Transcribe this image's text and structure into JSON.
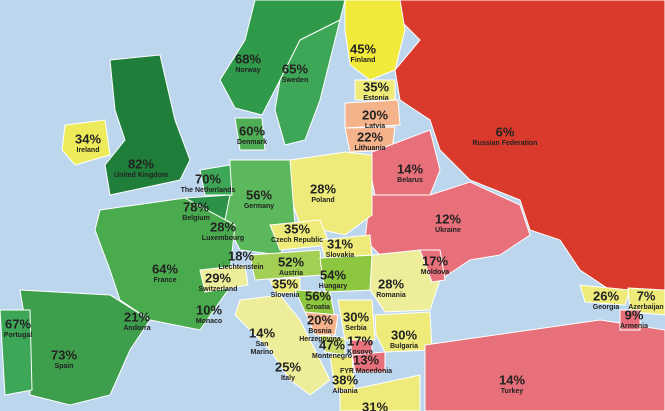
{
  "countries": [
    {
      "label": "45%",
      "name": [
        "Finland"
      ]
    },
    {
      "label": "68%",
      "name": [
        "Norway"
      ]
    },
    {
      "label": "65%",
      "name": [
        "Sweden"
      ]
    },
    {
      "label": "35%",
      "name": [
        "Estonia"
      ]
    },
    {
      "label": "20%",
      "name": [
        "Latvia"
      ]
    },
    {
      "label": "22%",
      "name": [
        "Lithuania"
      ]
    },
    {
      "label": "6%",
      "name": [
        "Russian Federation"
      ]
    },
    {
      "label": "34%",
      "name": [
        "Ireland"
      ]
    },
    {
      "label": "60%",
      "name": [
        "Denmark"
      ]
    },
    {
      "label": "82%",
      "name": [
        "United Kingdom"
      ]
    },
    {
      "label": "14%",
      "name": [
        "Belarus"
      ]
    },
    {
      "label": "70%",
      "name": [
        "The Netherlands"
      ]
    },
    {
      "label": "28%",
      "name": [
        "Poland"
      ]
    },
    {
      "label": "56%",
      "name": [
        "Germany"
      ]
    },
    {
      "label": "78%",
      "name": [
        "Belgium"
      ]
    },
    {
      "label": "28%",
      "name": [
        "Luxembourg"
      ]
    },
    {
      "label": "35%",
      "name": [
        "Czech Republic"
      ]
    },
    {
      "label": "12%",
      "name": [
        "Ukraine"
      ]
    },
    {
      "label": "31%",
      "name": [
        "Slovakia"
      ]
    },
    {
      "label": "18%",
      "name": [
        "Liechtenstein"
      ]
    },
    {
      "label": "52%",
      "name": [
        "Austria"
      ]
    },
    {
      "label": "17%",
      "name": [
        "Moldova"
      ]
    },
    {
      "label": "64%",
      "name": [
        "France"
      ]
    },
    {
      "label": "29%",
      "name": [
        "Switzerland"
      ]
    },
    {
      "label": "54%",
      "name": [
        "Hungary"
      ]
    },
    {
      "label": "28%",
      "name": [
        "Romania"
      ]
    },
    {
      "label": "35%",
      "name": [
        "Slovenia"
      ]
    },
    {
      "label": "56%",
      "name": [
        "Croatia"
      ]
    },
    {
      "label": "26%",
      "name": [
        "Georgia"
      ]
    },
    {
      "label": "7%",
      "name": [
        "Azerbaijan"
      ]
    },
    {
      "label": "9%",
      "name": [
        "Armenia"
      ]
    },
    {
      "label": "67%",
      "name": [
        "Portugal"
      ]
    },
    {
      "label": "21%",
      "name": [
        "Andorra"
      ]
    },
    {
      "label": "10%",
      "name": [
        "Monaco"
      ]
    },
    {
      "label": "20%",
      "name": [
        "Bosnia",
        "Herzegovina"
      ]
    },
    {
      "label": "30%",
      "name": [
        "Serbia"
      ]
    },
    {
      "label": "14%",
      "name": [
        "San",
        "Marino"
      ]
    },
    {
      "label": "47%",
      "name": [
        "Montenegro"
      ]
    },
    {
      "label": "17%",
      "name": [
        "Kosovo"
      ]
    },
    {
      "label": "30%",
      "name": [
        "Bulgaria"
      ]
    },
    {
      "label": "73%",
      "name": [
        "Spain"
      ]
    },
    {
      "label": "13%",
      "name": [
        "FYR Macedonia"
      ]
    },
    {
      "label": "25%",
      "name": [
        "Italy"
      ]
    },
    {
      "label": "38%",
      "name": [
        "Albania"
      ]
    },
    {
      "label": "14%",
      "name": [
        "Turkey"
      ]
    },
    {
      "label": "31%"
    }
  ]
}
